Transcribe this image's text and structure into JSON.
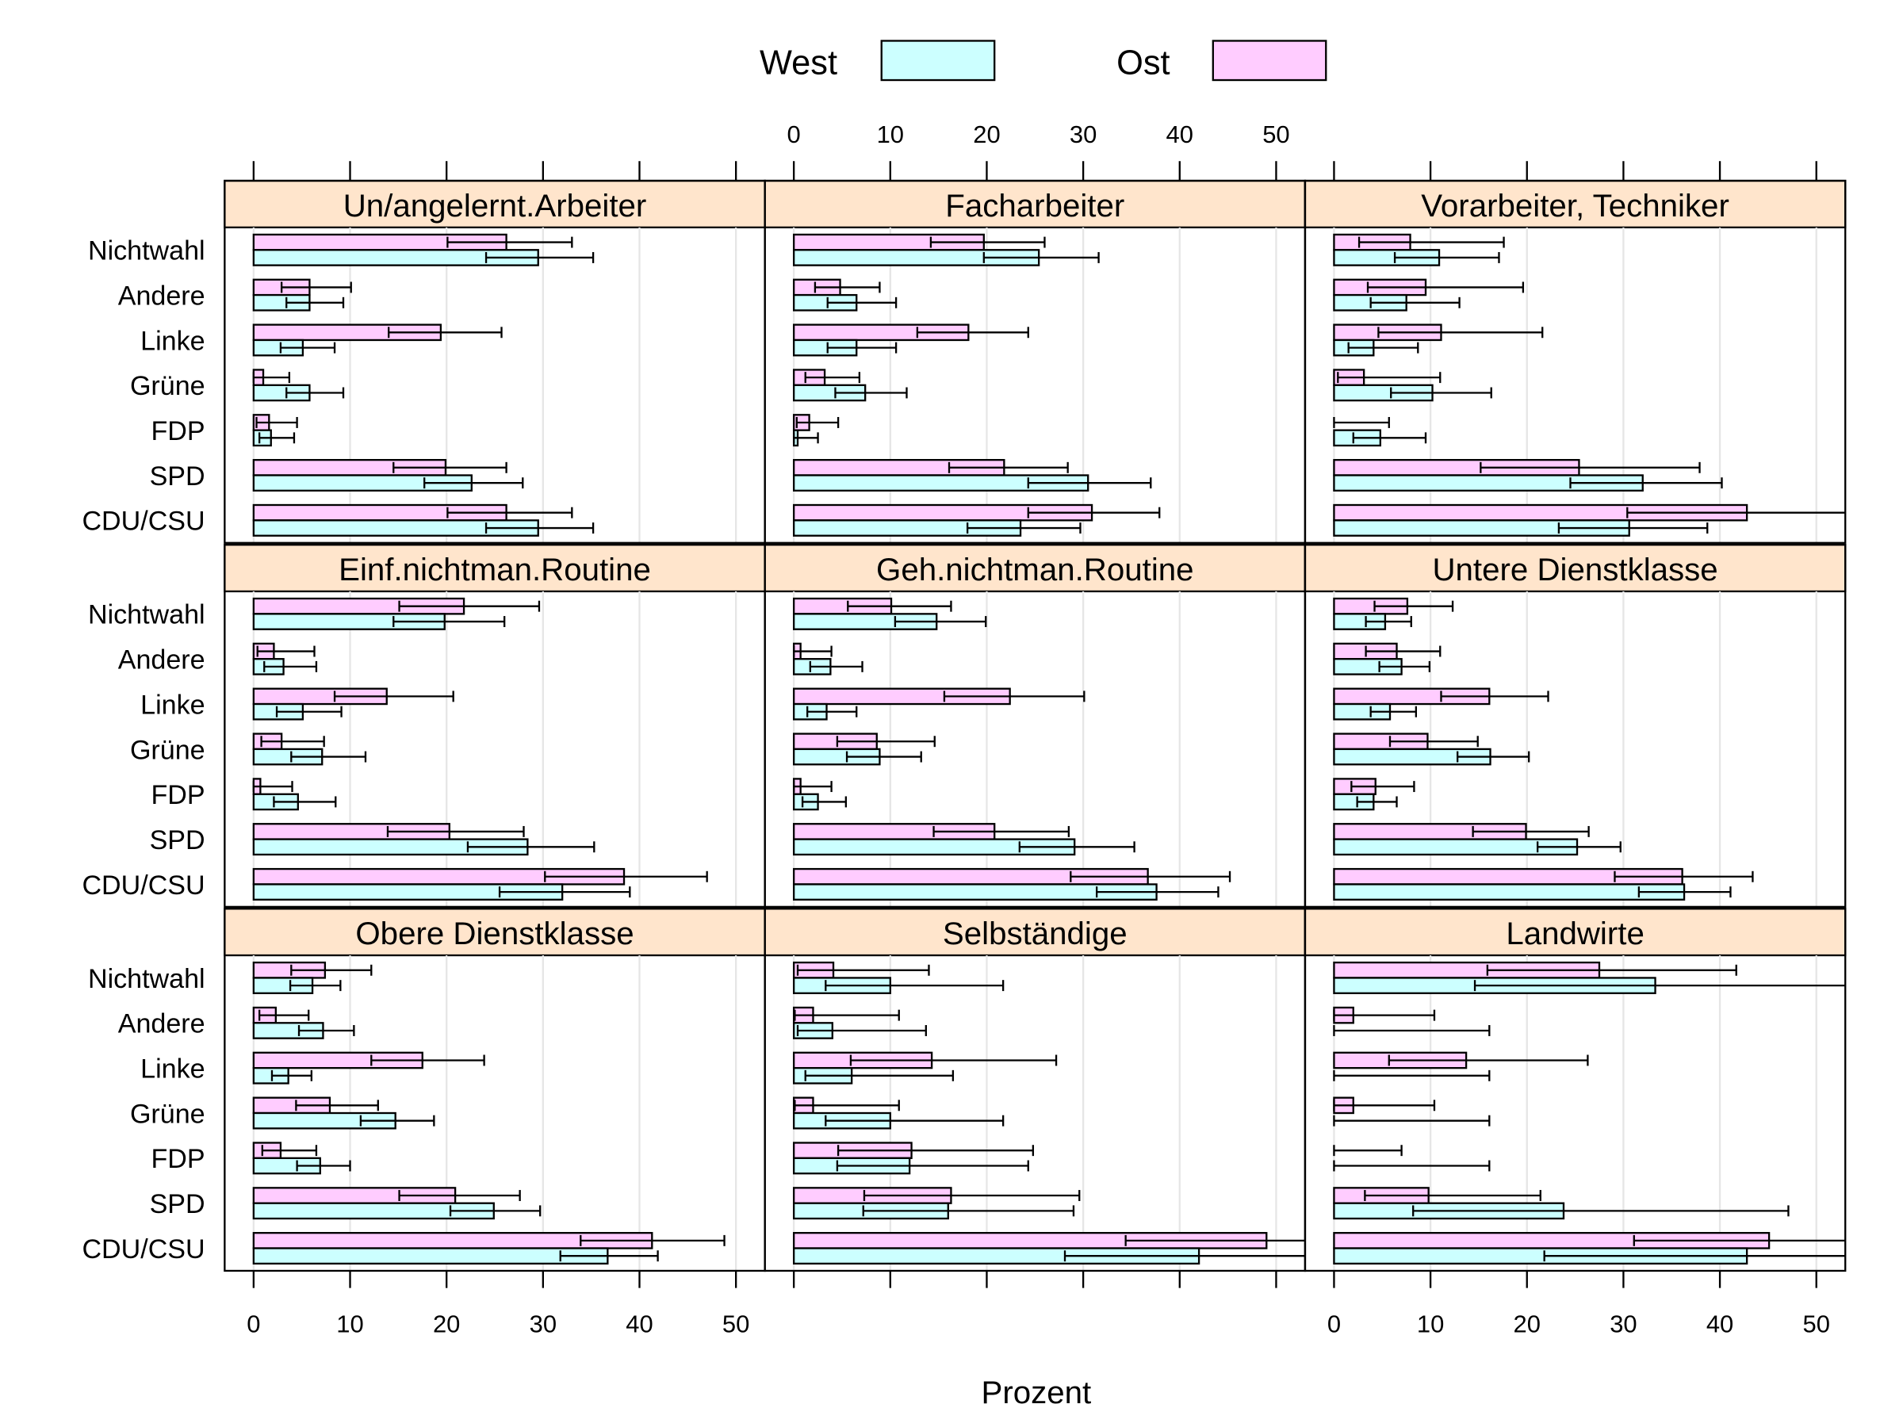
{
  "chart_data": {
    "type": "bar",
    "orientation": "horizontal",
    "layout": "3x3 panels",
    "xlabel": "Prozent",
    "xlim": [
      -3,
      53
    ],
    "xticks": [
      0,
      10,
      20,
      30,
      40,
      50
    ],
    "grid": "vertical",
    "legend": {
      "position": "top",
      "entries": [
        {
          "name": "West",
          "color": "#CCFFFF"
        },
        {
          "name": "Ost",
          "color": "#FFCCFF"
        }
      ]
    },
    "strip_color": "#FFE5CC",
    "categories": [
      "Nichtwahl",
      "Andere",
      "Linke",
      "Grüne",
      "FDP",
      "SPD",
      "CDU/CSU"
    ],
    "panels": [
      {
        "title": "Un/angelernt.Arbeiter",
        "Ost": {
          "values": [
            26.2,
            5.8,
            19.4,
            1.0,
            1.6,
            19.9,
            26.2
          ],
          "lower": [
            20.1,
            2.9,
            14.0,
            0.0,
            0.3,
            14.5,
            20.1
          ],
          "upper": [
            33.0,
            10.1,
            25.7,
            3.7,
            4.5,
            26.2,
            33.0
          ]
        },
        "West": {
          "values": [
            29.5,
            5.8,
            5.1,
            5.8,
            1.8,
            22.6,
            29.5
          ],
          "lower": [
            24.1,
            3.4,
            2.8,
            3.4,
            0.6,
            17.7,
            24.1
          ],
          "upper": [
            35.2,
            9.3,
            8.4,
            9.3,
            4.2,
            27.9,
            35.2
          ]
        }
      },
      {
        "title": "Facharbeiter",
        "Ost": {
          "values": [
            19.7,
            4.8,
            18.1,
            3.2,
            1.6,
            21.8,
            30.9
          ],
          "lower": [
            14.2,
            2.2,
            12.8,
            1.2,
            0.3,
            16.1,
            24.3
          ],
          "upper": [
            26.0,
            8.9,
            24.3,
            6.8,
            4.6,
            28.4,
            37.9
          ]
        },
        "West": {
          "values": [
            25.4,
            6.5,
            6.5,
            7.4,
            0.4,
            30.5,
            23.5
          ],
          "lower": [
            19.7,
            3.5,
            3.5,
            4.3,
            0.0,
            24.3,
            18.0
          ],
          "upper": [
            31.6,
            10.6,
            10.6,
            11.7,
            2.5,
            37.0,
            29.7
          ]
        }
      },
      {
        "title": "Vorarbeiter, Techniker",
        "Ost": {
          "values": [
            7.9,
            9.5,
            11.1,
            3.1,
            0.0,
            25.4,
            42.8
          ],
          "lower": [
            2.6,
            3.5,
            4.6,
            0.4,
            0.0,
            15.2,
            30.4
          ],
          "upper": [
            17.6,
            19.6,
            21.6,
            11.0,
            5.7,
            37.9,
            56.0
          ]
        },
        "West": {
          "values": [
            10.9,
            7.5,
            4.1,
            10.2,
            4.8,
            32.0,
            30.6
          ],
          "lower": [
            6.3,
            3.8,
            1.5,
            5.9,
            2.0,
            24.5,
            23.3
          ],
          "upper": [
            17.1,
            13.0,
            8.7,
            16.3,
            9.5,
            40.2,
            38.7
          ]
        }
      },
      {
        "title": "Einf.nichtman.Routine",
        "Ost": {
          "values": [
            21.8,
            2.1,
            13.8,
            2.9,
            0.7,
            20.3,
            38.4
          ],
          "lower": [
            15.1,
            0.4,
            8.4,
            0.8,
            0.0,
            13.9,
            30.2
          ],
          "upper": [
            29.6,
            6.3,
            20.7,
            7.3,
            4.0,
            28.0,
            47.0
          ]
        },
        "West": {
          "values": [
            19.8,
            3.1,
            5.1,
            7.1,
            4.6,
            28.4,
            32.0
          ],
          "lower": [
            14.5,
            1.1,
            2.4,
            3.9,
            2.1,
            22.2,
            25.5
          ],
          "upper": [
            26.0,
            6.5,
            9.1,
            11.6,
            8.5,
            35.3,
            39.0
          ]
        }
      },
      {
        "title": "Geh.nichtman.Routine",
        "Ost": {
          "values": [
            10.1,
            0.7,
            22.4,
            8.6,
            0.7,
            20.8,
            36.7
          ],
          "lower": [
            5.6,
            0.0,
            15.6,
            4.5,
            0.0,
            14.5,
            28.7
          ],
          "upper": [
            16.3,
            3.9,
            30.1,
            14.6,
            3.9,
            28.5,
            45.2
          ]
        },
        "West": {
          "values": [
            14.8,
            3.8,
            3.4,
            8.9,
            2.5,
            29.1,
            37.6
          ],
          "lower": [
            10.5,
            1.7,
            1.4,
            5.5,
            0.9,
            23.4,
            31.4
          ],
          "upper": [
            19.9,
            7.1,
            6.5,
            13.2,
            5.4,
            35.3,
            44.0
          ]
        }
      },
      {
        "title": "Untere Dienstklasse",
        "Ost": {
          "values": [
            7.6,
            6.5,
            16.1,
            9.7,
            4.3,
            19.9,
            36.1
          ],
          "lower": [
            4.2,
            3.3,
            11.1,
            5.8,
            1.8,
            14.4,
            29.1
          ],
          "upper": [
            12.3,
            11.0,
            22.2,
            14.9,
            8.3,
            26.4,
            43.4
          ]
        },
        "West": {
          "values": [
            5.3,
            7.0,
            5.8,
            16.2,
            4.1,
            25.2,
            36.3
          ],
          "lower": [
            3.3,
            4.7,
            3.8,
            12.8,
            2.4,
            21.1,
            31.6
          ],
          "upper": [
            8.0,
            9.9,
            8.5,
            20.2,
            6.5,
            29.7,
            41.1
          ]
        }
      },
      {
        "title": "Obere Dienstklasse",
        "Ost": {
          "values": [
            7.4,
            2.3,
            17.5,
            7.9,
            2.8,
            20.9,
            41.3
          ],
          "lower": [
            3.9,
            0.6,
            12.2,
            4.4,
            0.9,
            15.1,
            33.9
          ],
          "upper": [
            12.2,
            5.7,
            23.9,
            12.9,
            6.5,
            27.6,
            48.8
          ]
        },
        "West": {
          "values": [
            6.1,
            7.2,
            3.6,
            14.7,
            6.9,
            24.9,
            36.7
          ],
          "lower": [
            3.8,
            4.7,
            1.9,
            11.1,
            4.5,
            20.4,
            31.8
          ],
          "upper": [
            9.0,
            10.4,
            6.0,
            18.7,
            10.0,
            29.7,
            41.9
          ]
        }
      },
      {
        "title": "Selbständige",
        "Ost": {
          "values": [
            4.1,
            2.0,
            14.3,
            2.0,
            12.2,
            16.3,
            49.0
          ],
          "lower": [
            0.4,
            0.1,
            5.9,
            0.1,
            4.6,
            7.3,
            34.4
          ],
          "upper": [
            14.0,
            10.9,
            27.2,
            10.9,
            24.8,
            29.6,
            64.0
          ]
        },
        "West": {
          "values": [
            10.0,
            4.0,
            6.0,
            10.0,
            12.0,
            16.0,
            42.0
          ],
          "lower": [
            3.3,
            0.4,
            1.2,
            3.3,
            4.5,
            7.2,
            28.1
          ],
          "upper": [
            21.7,
            13.7,
            16.5,
            21.7,
            24.3,
            29.0,
            56.0
          ]
        }
      },
      {
        "title": "Landwirte",
        "Ost": {
          "values": [
            27.5,
            2.0,
            13.7,
            2.0,
            0.0,
            9.8,
            45.1
          ],
          "lower": [
            15.9,
            0.0,
            5.7,
            0.0,
            0.0,
            3.2,
            31.1
          ],
          "upper": [
            41.7,
            10.4,
            26.3,
            10.4,
            7.0,
            21.4,
            60.0
          ]
        },
        "West": {
          "values": [
            33.3,
            0.0,
            0.0,
            0.0,
            0.0,
            23.8,
            42.8
          ],
          "lower": [
            14.6,
            0.0,
            0.0,
            0.0,
            0.0,
            8.2,
            21.8
          ],
          "upper": [
            56.0,
            16.1,
            16.1,
            16.1,
            16.1,
            47.1,
            62.0
          ]
        }
      }
    ]
  }
}
